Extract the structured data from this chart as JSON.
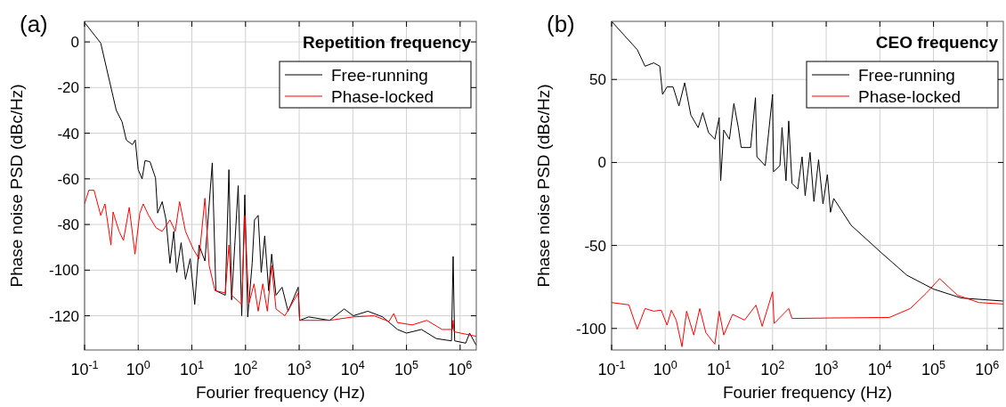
{
  "chart_data": [
    {
      "type": "line",
      "title": "Repetition frequency",
      "xlabel": "Fourier frequency (Hz)",
      "ylabel": "Phase noise PSD (dBc/Hz)",
      "annotations": [
        "(a)"
      ],
      "log": "x",
      "grid": true,
      "legend": "top right",
      "xlim": [
        0.1,
        2000000
      ],
      "ylim": [
        -135,
        9
      ],
      "xticks": [
        {
          "value": 0.1,
          "label": "10$^{-1}$"
        },
        {
          "value": 1,
          "label": "10$^{0}$"
        },
        {
          "value": 10,
          "label": "10$^{1}$"
        },
        {
          "value": 100,
          "label": "10$^{2}$"
        },
        {
          "value": 1000,
          "label": "10$^{3}$"
        },
        {
          "value": 10000,
          "label": "10$^{4}$"
        },
        {
          "value": 100000,
          "label": "10$^{5}$"
        },
        {
          "value": 1000000,
          "label": "10$^{6}$"
        }
      ],
      "yticks": [
        0,
        -20,
        -40,
        -60,
        -80,
        -100,
        -120
      ],
      "series": [
        {
          "name": "Free-running",
          "color": "#000000",
          "x": [
            0.1,
            0.2,
            0.39,
            0.5,
            0.6,
            0.78,
            0.88,
            1.0,
            1.18,
            1.34,
            1.66,
            2.1,
            2.3,
            2.8,
            3.3,
            3.9,
            4.6,
            5.2,
            6.3,
            7.6,
            9.3,
            11.3,
            13.6,
            17.5,
            24,
            28,
            42,
            49,
            55,
            73,
            85,
            97,
            110,
            133,
            147,
            172,
            196,
            228,
            270,
            307,
            370,
            480,
            620,
            960,
            1020,
            1500,
            3700,
            6900,
            10200,
            19000,
            36000,
            68000,
            100000,
            190000,
            360000,
            690000,
            740000,
            790000,
            1270000,
            1500000,
            2000000
          ],
          "values": [
            8.5,
            -0.5,
            -30,
            -35,
            -43,
            -45,
            -43,
            -56,
            -60,
            -52,
            -52.5,
            -59.6,
            -75,
            -70,
            -78,
            -97,
            -83,
            -101,
            -88,
            -104,
            -95,
            -115,
            -89,
            -96,
            -53,
            -109,
            -111,
            -56,
            -113,
            -63,
            -120,
            -67,
            -120.5,
            -97,
            -78,
            -76,
            -101,
            -85,
            -109,
            -93,
            -111,
            -107.5,
            -118,
            -107.5,
            -122,
            -120.5,
            -122,
            -117,
            -120,
            -118,
            -120.5,
            -126,
            -127.6,
            -126,
            -130,
            -131,
            -94,
            -131,
            -132,
            -127.6,
            -133
          ]
        },
        {
          "name": "Phase-locked",
          "color": "#ff0000",
          "x": [
            0.1,
            0.12,
            0.15,
            0.2,
            0.24,
            0.31,
            0.34,
            0.44,
            0.53,
            0.68,
            0.87,
            1.07,
            1.24,
            1.56,
            2.15,
            2.8,
            3.9,
            4.9,
            5.9,
            7.6,
            10.7,
            13.6,
            17.5,
            21,
            27,
            42,
            49,
            55,
            85,
            97,
            115,
            144,
            172,
            210,
            255,
            307,
            370,
            540,
            960,
            1020,
            3700,
            10200,
            25000,
            47000,
            58000,
            68000,
            128000,
            240000,
            460000,
            720000,
            740000,
            770000,
            2000000
          ],
          "values": [
            -71,
            -65,
            -65,
            -76,
            -71,
            -89,
            -74.5,
            -83,
            -87,
            -72.5,
            -93,
            -75,
            -71,
            -76,
            -81.5,
            -83,
            -78,
            -83,
            -70,
            -83,
            -91,
            -95,
            -68.5,
            -98,
            -109,
            -110,
            -89,
            -111,
            -115,
            -76,
            -115,
            -106,
            -118,
            -106,
            -118,
            -98,
            -117,
            -120,
            -110,
            -122,
            -122,
            -120.5,
            -120,
            -122.5,
            -119,
            -123,
            -124,
            -122,
            -126,
            -126,
            -122,
            -127,
            -129
          ]
        }
      ]
    },
    {
      "type": "line",
      "title": "CEO frequency",
      "xlabel": "Fourier frequency (Hz)",
      "ylabel": "Phase noise PSD (dBc/Hz)",
      "annotations": [
        "(b)"
      ],
      "log": "x",
      "grid": true,
      "legend": "top right",
      "xlim": [
        0.1,
        2000000
      ],
      "ylim": [
        -113,
        85
      ],
      "xticks": [
        {
          "value": 0.1,
          "label": "10$^{-1}$"
        },
        {
          "value": 1,
          "label": "10$^{0}$"
        },
        {
          "value": 10,
          "label": "10$^{1}$"
        },
        {
          "value": 100,
          "label": "10$^{2}$"
        },
        {
          "value": 1000,
          "label": "10$^{3}$"
        },
        {
          "value": 10000,
          "label": "10$^{4}$"
        },
        {
          "value": 100000,
          "label": "10$^{5}$"
        },
        {
          "value": 1000000,
          "label": "10$^{6}$"
        }
      ],
      "yticks": [
        50,
        0,
        -50,
        -100
      ],
      "series": [
        {
          "name": "Free-running",
          "color": "#000000",
          "x": [
            0.1,
            0.3,
            0.42,
            0.61,
            0.79,
            0.89,
            1.08,
            1.4,
            1.8,
            2.3,
            3.0,
            4.1,
            5.0,
            6.4,
            8.4,
            10.1,
            10.8,
            12.3,
            15.7,
            19,
            23,
            26,
            39,
            48,
            51,
            73,
            100,
            104,
            137,
            150,
            178,
            200,
            230,
            295,
            355,
            405,
            500,
            590,
            720,
            870,
            1050,
            1200,
            1380,
            2900,
            10300,
            32000,
            100000,
            330000,
            2000000
          ],
          "values": [
            85,
            68,
            58,
            60,
            58,
            41,
            45.5,
            45.5,
            34,
            48,
            28.5,
            21,
            30,
            18,
            14,
            27,
            -11,
            19.5,
            14,
            35.5,
            21,
            9,
            9,
            39,
            3.4,
            -2,
            41,
            -5.6,
            -2,
            21,
            -11,
            25,
            -12.7,
            -16,
            3.4,
            -20,
            6,
            -23.5,
            1.6,
            -25,
            -7.3,
            -30,
            -21.7,
            -37.8,
            -54,
            -68,
            -76.3,
            -81.7,
            -83.5
          ]
        },
        {
          "name": "Phase-locked",
          "color": "#ff0000",
          "x": [
            0.1,
            0.21,
            0.3,
            0.42,
            0.61,
            0.84,
            1.08,
            1.3,
            1.6,
            2.05,
            2.5,
            3.4,
            4.4,
            5.7,
            8.4,
            10.1,
            12.3,
            18,
            30,
            49,
            64,
            100,
            107,
            200,
            230,
            1200,
            15000,
            37000,
            72000,
            130000,
            280000,
            700000,
            2000000
          ],
          "values": [
            -84.4,
            -85.8,
            -100.5,
            -88,
            -89.6,
            -89,
            -98,
            -89,
            -95,
            -111,
            -89.6,
            -104,
            -88,
            -102.5,
            -109.5,
            -89.6,
            -104,
            -91.5,
            -95,
            -86,
            -98.7,
            -78,
            -97,
            -88,
            -94,
            -93.7,
            -93.4,
            -88,
            -79,
            -70,
            -80,
            -84.4,
            -85.3
          ]
        }
      ]
    }
  ]
}
